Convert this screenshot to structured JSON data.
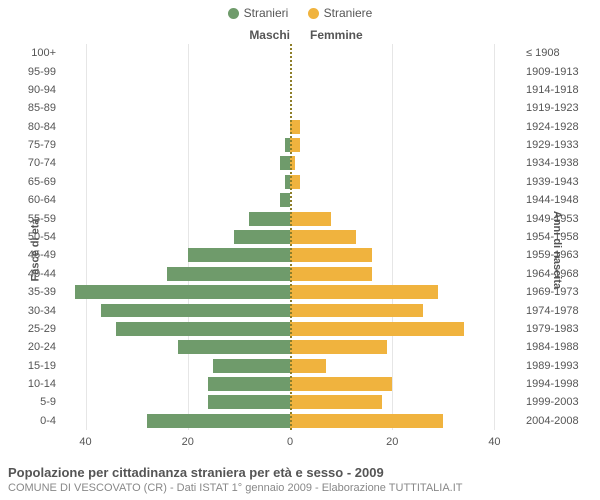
{
  "legend": {
    "male": {
      "label": "Stranieri",
      "color": "#6f9b6b"
    },
    "female": {
      "label": "Straniere",
      "color": "#f0b33e"
    }
  },
  "columns": {
    "male": "Maschi",
    "female": "Femmine"
  },
  "y_axis_left_title": "Fasce di età",
  "y_axis_right_title": "Anni di nascita",
  "chart": {
    "type": "population-pyramid",
    "background_color": "#ffffff",
    "grid_color": "#e6e6e6",
    "center_axis_color": "#8e7f2a",
    "font_family": "Arial",
    "label_fontsize": 11,
    "bar_height_ratio": 0.76,
    "x_max": 45,
    "x_ticks": [
      0,
      20,
      40
    ],
    "rows": [
      {
        "age": "100+",
        "years": "≤ 1908",
        "m": 0,
        "f": 0
      },
      {
        "age": "95-99",
        "years": "1909-1913",
        "m": 0,
        "f": 0
      },
      {
        "age": "90-94",
        "years": "1914-1918",
        "m": 0,
        "f": 0
      },
      {
        "age": "85-89",
        "years": "1919-1923",
        "m": 0,
        "f": 0
      },
      {
        "age": "80-84",
        "years": "1924-1928",
        "m": 0,
        "f": 2
      },
      {
        "age": "75-79",
        "years": "1929-1933",
        "m": 1,
        "f": 2
      },
      {
        "age": "70-74",
        "years": "1934-1938",
        "m": 2,
        "f": 1
      },
      {
        "age": "65-69",
        "years": "1939-1943",
        "m": 1,
        "f": 2
      },
      {
        "age": "60-64",
        "years": "1944-1948",
        "m": 2,
        "f": 0
      },
      {
        "age": "55-59",
        "years": "1949-1953",
        "m": 8,
        "f": 8
      },
      {
        "age": "50-54",
        "years": "1954-1958",
        "m": 11,
        "f": 13
      },
      {
        "age": "45-49",
        "years": "1959-1963",
        "m": 20,
        "f": 16
      },
      {
        "age": "40-44",
        "years": "1964-1968",
        "m": 24,
        "f": 16
      },
      {
        "age": "35-39",
        "years": "1969-1973",
        "m": 42,
        "f": 29
      },
      {
        "age": "30-34",
        "years": "1974-1978",
        "m": 37,
        "f": 26
      },
      {
        "age": "25-29",
        "years": "1979-1983",
        "m": 34,
        "f": 34
      },
      {
        "age": "20-24",
        "years": "1984-1988",
        "m": 22,
        "f": 19
      },
      {
        "age": "15-19",
        "years": "1989-1993",
        "m": 15,
        "f": 7
      },
      {
        "age": "10-14",
        "years": "1994-1998",
        "m": 16,
        "f": 20
      },
      {
        "age": "5-9",
        "years": "1999-2003",
        "m": 16,
        "f": 18
      },
      {
        "age": "0-4",
        "years": "2004-2008",
        "m": 28,
        "f": 30
      }
    ]
  },
  "footer": {
    "title": "Popolazione per cittadinanza straniera per età e sesso - 2009",
    "subtitle": "COMUNE DI VESCOVATO (CR) - Dati ISTAT 1° gennaio 2009 - Elaborazione TUTTITALIA.IT"
  }
}
